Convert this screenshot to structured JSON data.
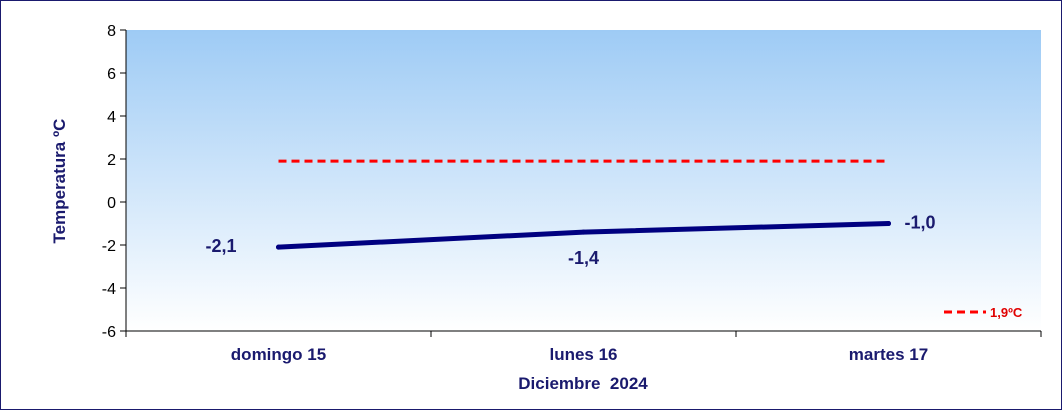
{
  "chart_data": {
    "type": "line",
    "xlabel": "Diciembre  2024",
    "ylabel": "Temperatura ºC",
    "ylim": [
      -6,
      8
    ],
    "yticks": [
      "8",
      "6",
      "4",
      "2",
      "0",
      "-2",
      "-4",
      "-6"
    ],
    "ytick_values": [
      8,
      6,
      4,
      2,
      0,
      -2,
      -4,
      -6
    ],
    "categories": [
      "domingo 15",
      "lunes 16",
      "martes 17"
    ],
    "series": [
      {
        "values": [
          -2.1,
          -1.4,
          -1.0
        ],
        "labels": [
          "-2,1",
          "-1,4",
          "-1,0"
        ],
        "color": "#000080",
        "style": "solid"
      },
      {
        "name": "1,9ºC",
        "values": [
          1.9,
          1.9,
          1.9
        ],
        "color": "#ff0000",
        "style": "dashed"
      }
    ],
    "legend_position": "bottom-right",
    "plot_background": [
      "#9ecbf5",
      "#ffffff"
    ]
  }
}
